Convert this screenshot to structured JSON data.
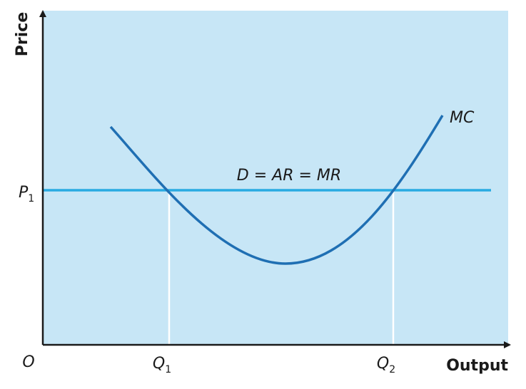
{
  "axes": {
    "y_label": "Price",
    "x_label": "Output",
    "origin": "O"
  },
  "price_level": {
    "main": "P",
    "sub": "1"
  },
  "quantities": [
    {
      "main": "Q",
      "sub": "1"
    },
    {
      "main": "Q",
      "sub": "2"
    }
  ],
  "curves": {
    "mc": "MC",
    "demand": "D = AR = MR"
  }
}
